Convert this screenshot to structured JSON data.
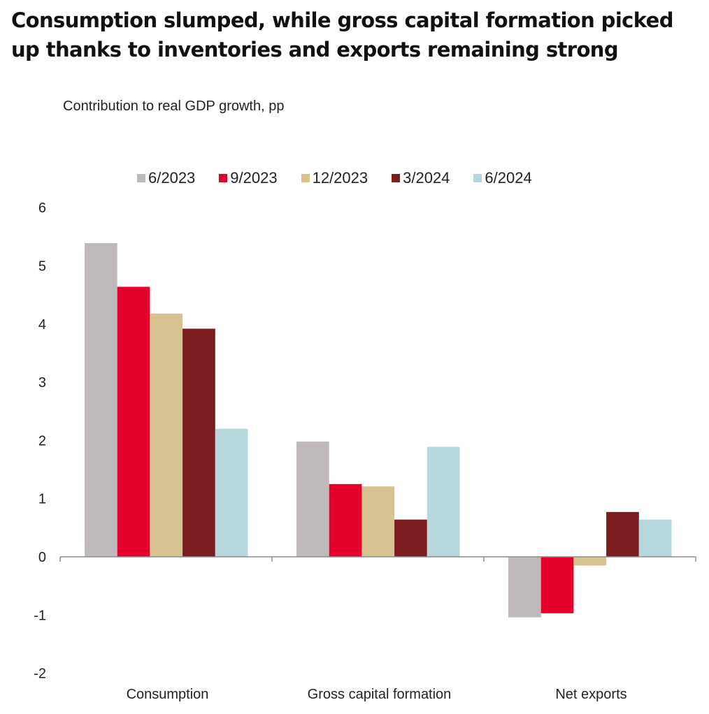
{
  "title": "Consumption slumped, while gross capital formation picked up thanks to inventories and exports remaining strong",
  "chart_data": {
    "type": "bar",
    "title": "Consumption slumped, while gross capital formation picked up thanks to inventories and exports remaining strong",
    "subtitle": "Contribution to real GDP growth, pp",
    "xlabel": "",
    "ylabel": "Contribution to real GDP growth, pp",
    "categories": [
      "Consumption",
      "Gross capital formation",
      "Net exports"
    ],
    "series": [
      {
        "name": "6/2023",
        "color": "#c0b9bb",
        "values": [
          5.39,
          1.98,
          -1.04
        ]
      },
      {
        "name": "9/2023",
        "color": "#e4002b",
        "values": [
          4.64,
          1.25,
          -0.97
        ]
      },
      {
        "name": "12/2023",
        "color": "#d6c391",
        "values": [
          4.18,
          1.21,
          -0.15
        ]
      },
      {
        "name": "3/2024",
        "color": "#7b1c21",
        "values": [
          3.92,
          0.64,
          0.77
        ]
      },
      {
        "name": "6/2024",
        "color": "#b6d7dc",
        "values": [
          2.2,
          1.89,
          0.64
        ]
      }
    ],
    "ylim": [
      -2,
      6
    ],
    "yticks": [
      6,
      5,
      4,
      3,
      2,
      1,
      0,
      -1,
      -2
    ],
    "grid": false,
    "legend": "top-center"
  }
}
